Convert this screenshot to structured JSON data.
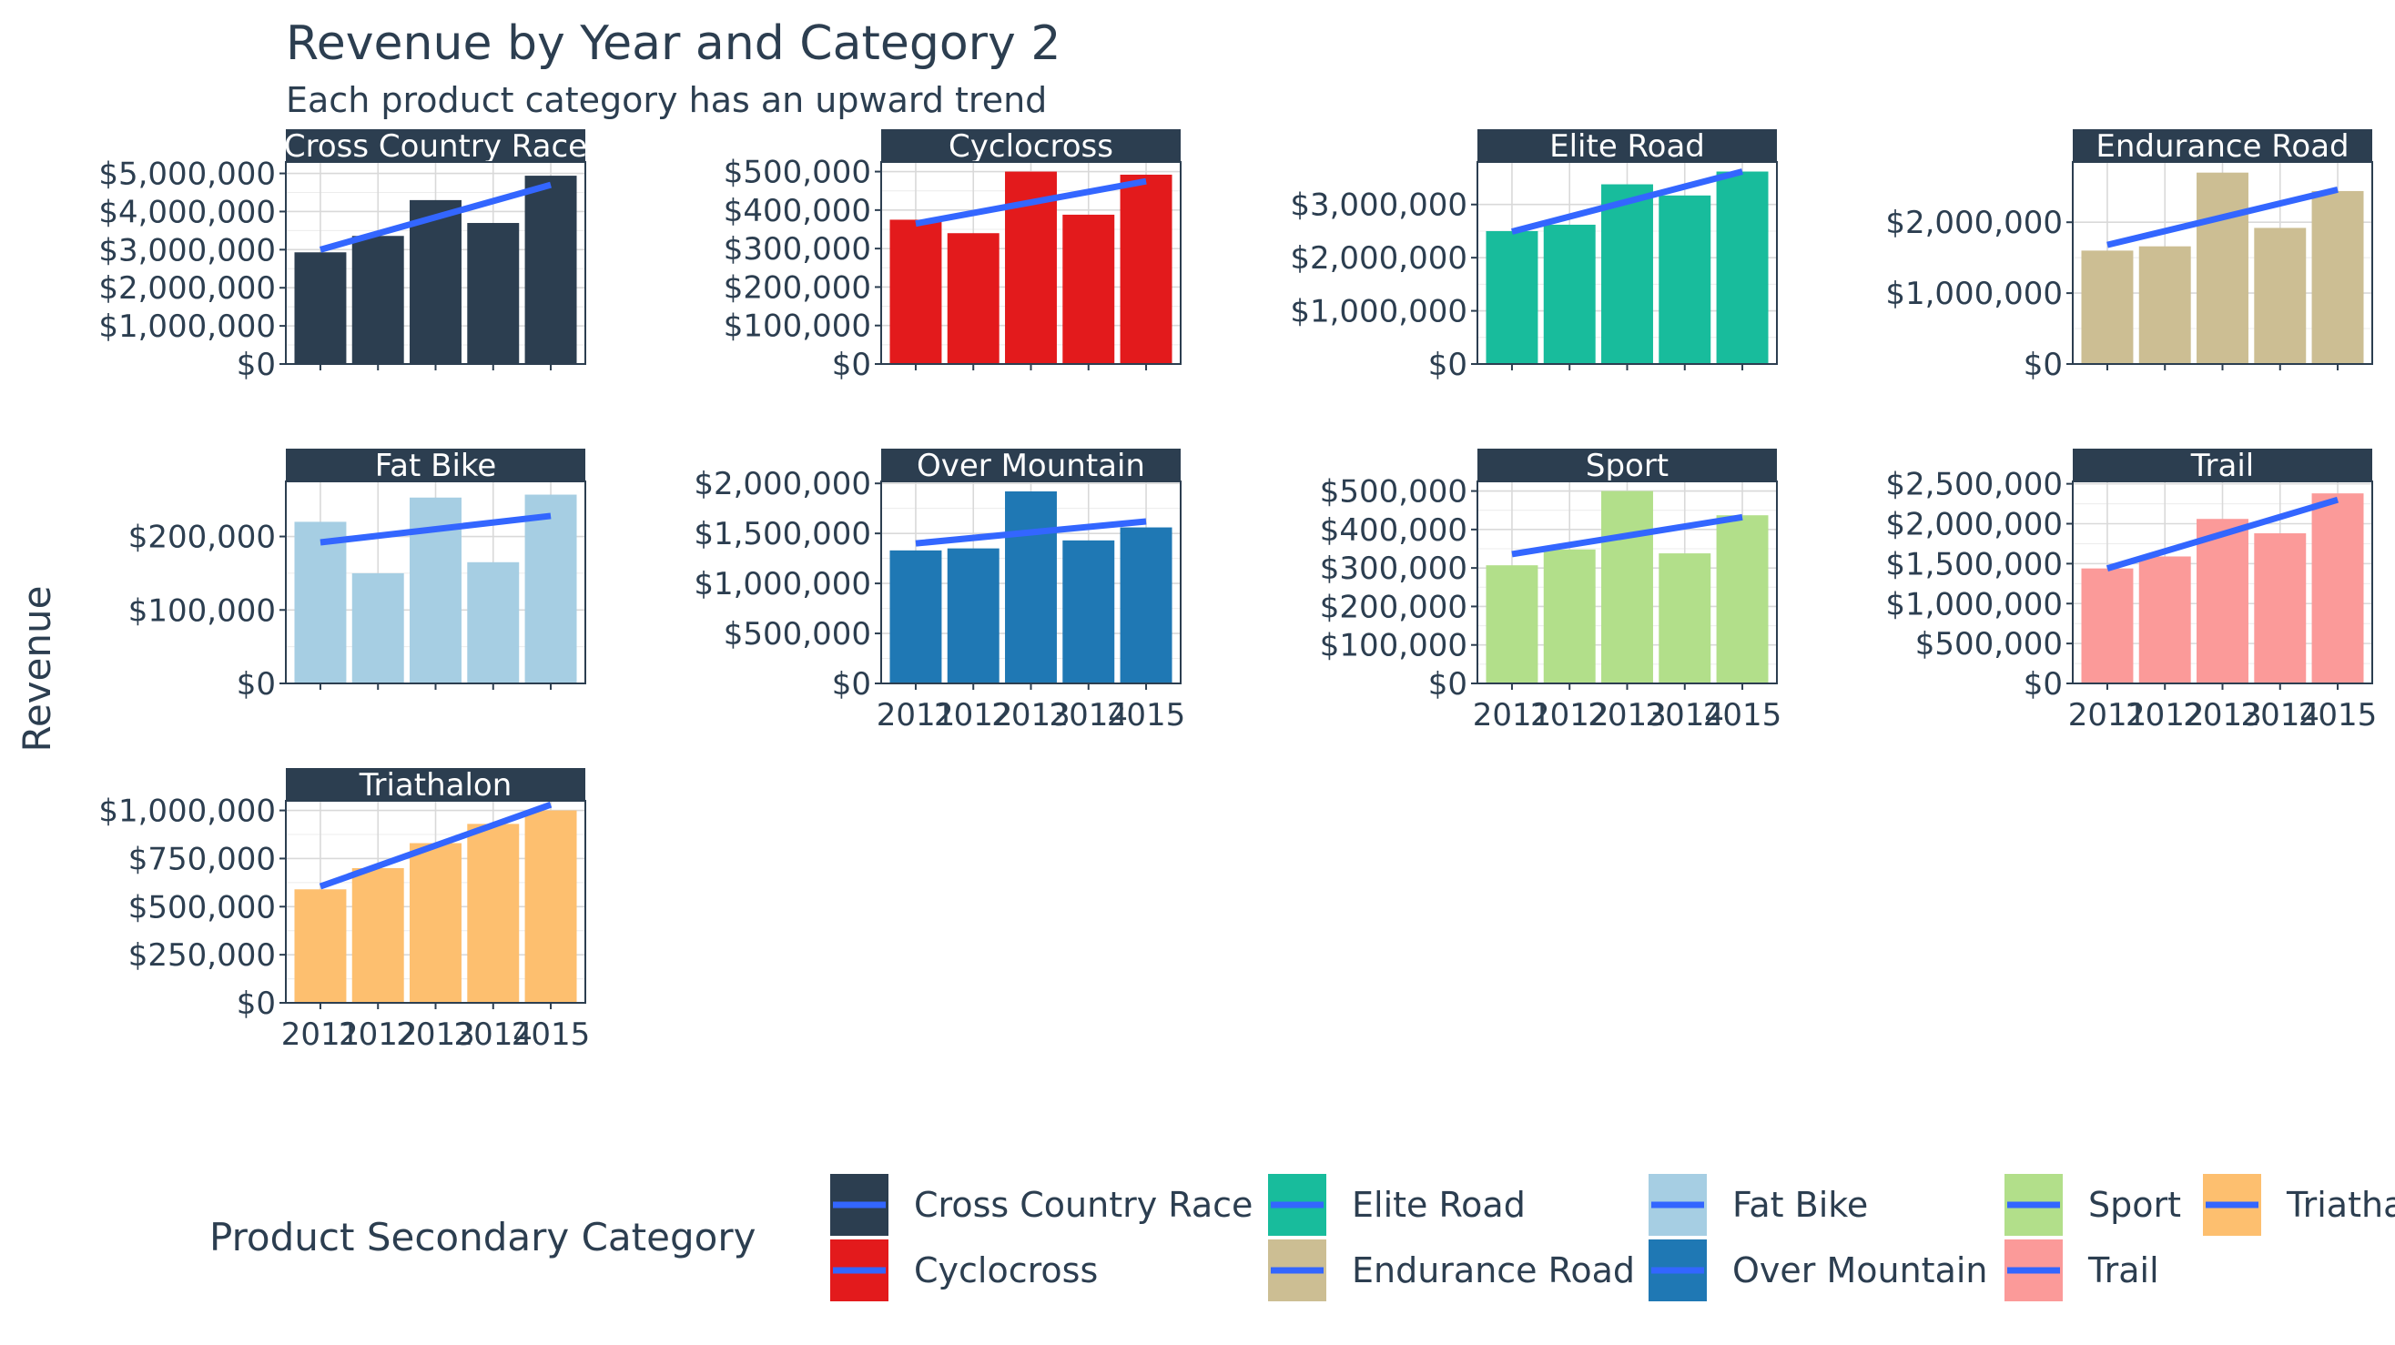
{
  "chart_data": {
    "type": "bar",
    "title": "Revenue by Year and Category 2",
    "subtitle": "Each product category has an upward trend",
    "ylabel": "Revenue",
    "xlabel": "",
    "x": [
      2011,
      2012,
      2013,
      2014,
      2015
    ],
    "x_tick_labels": [
      "2011",
      "2012",
      "2013",
      "2014",
      "2015"
    ],
    "grid": true,
    "facet_columns": 4,
    "trend_color": "#3366ff",
    "strip_color": "#2c3e50",
    "legend": {
      "title": "Product Secondary Category",
      "position": "bottom",
      "entries": [
        "Cross Country Race",
        "Cyclocross",
        "Elite Road",
        "Endurance Road",
        "Fat Bike",
        "Over Mountain",
        "Sport",
        "Trail",
        "Triathalon"
      ]
    },
    "panels": [
      {
        "name": "Cross Country Race",
        "color": "#2c3e50",
        "values": [
          2930000,
          3360000,
          4300000,
          3700000,
          4940000
        ],
        "trend": [
          3000000,
          4700000
        ],
        "ylim": [
          0,
          5300000
        ],
        "y_ticks": [
          0,
          1000000,
          2000000,
          3000000,
          4000000,
          5000000
        ],
        "y_tick_labels": [
          "$0",
          "$1,000,000",
          "$2,000,000",
          "$3,000,000",
          "$4,000,000",
          "$5,000,000"
        ]
      },
      {
        "name": "Cyclocross",
        "color": "#e31a1c",
        "values": [
          375000,
          340000,
          500000,
          388000,
          492000
        ],
        "trend": [
          365000,
          475000
        ],
        "ylim": [
          0,
          525000
        ],
        "y_ticks": [
          0,
          100000,
          200000,
          300000,
          400000,
          500000
        ],
        "y_tick_labels": [
          "$0",
          "$100,000",
          "$200,000",
          "$300,000",
          "$400,000",
          "$500,000"
        ]
      },
      {
        "name": "Elite Road",
        "color": "#18bc9c",
        "values": [
          2500000,
          2620000,
          3380000,
          3170000,
          3620000
        ],
        "trend": [
          2490000,
          3620000
        ],
        "ylim": [
          0,
          3800000
        ],
        "y_ticks": [
          0,
          1000000,
          2000000,
          3000000
        ],
        "y_tick_labels": [
          "$0",
          "$1,000,000",
          "$2,000,000",
          "$3,000,000"
        ]
      },
      {
        "name": "Endurance Road",
        "color": "#ccbe93",
        "values": [
          1600000,
          1660000,
          2700000,
          1920000,
          2440000
        ],
        "trend": [
          1680000,
          2460000
        ],
        "ylim": [
          0,
          2850000
        ],
        "y_ticks": [
          0,
          1000000,
          2000000
        ],
        "y_tick_labels": [
          "$0",
          "$1,000,000",
          "$2,000,000"
        ]
      },
      {
        "name": "Fat Bike",
        "color": "#a6cee3",
        "values": [
          220000,
          150000,
          253000,
          165000,
          257000
        ],
        "trend": [
          192000,
          228000
        ],
        "ylim": [
          0,
          275000
        ],
        "y_ticks": [
          0,
          100000,
          200000
        ],
        "y_tick_labels": [
          "$0",
          "$100,000",
          "$200,000"
        ]
      },
      {
        "name": "Over Mountain",
        "color": "#1f78b4",
        "values": [
          1330000,
          1350000,
          1920000,
          1430000,
          1560000
        ],
        "trend": [
          1400000,
          1620000
        ],
        "ylim": [
          0,
          2020000
        ],
        "y_ticks": [
          0,
          500000,
          1000000,
          1500000,
          2000000
        ],
        "y_tick_labels": [
          "$0",
          "$500,000",
          "$1,000,000",
          "$1,500,000",
          "$2,000,000"
        ]
      },
      {
        "name": "Sport",
        "color": "#b2df8a",
        "values": [
          307000,
          348000,
          500000,
          338000,
          437000
        ],
        "trend": [
          336000,
          432000
        ],
        "ylim": [
          0,
          525000
        ],
        "y_ticks": [
          0,
          100000,
          200000,
          300000,
          400000,
          500000
        ],
        "y_tick_labels": [
          "$0",
          "$100,000",
          "$200,000",
          "$300,000",
          "$400,000",
          "$500,000"
        ]
      },
      {
        "name": "Trail",
        "color": "#fb9a99",
        "values": [
          1440000,
          1590000,
          2060000,
          1880000,
          2380000
        ],
        "trend": [
          1440000,
          2300000
        ],
        "ylim": [
          0,
          2530000
        ],
        "y_ticks": [
          0,
          500000,
          1000000,
          1500000,
          2000000,
          2500000
        ],
        "y_tick_labels": [
          "$0",
          "$500,000",
          "$1,000,000",
          "$1,500,000",
          "$2,000,000",
          "$2,500,000"
        ]
      },
      {
        "name": "Triathalon",
        "color": "#fdbf6f",
        "values": [
          590000,
          700000,
          830000,
          930000,
          1000000
        ],
        "trend": [
          605000,
          1030000
        ],
        "ylim": [
          0,
          1050000
        ],
        "y_ticks": [
          0,
          250000,
          500000,
          750000,
          1000000
        ],
        "y_tick_labels": [
          "$0",
          "$250,000",
          "$500,000",
          "$750,000",
          "$1,000,000"
        ]
      }
    ]
  }
}
